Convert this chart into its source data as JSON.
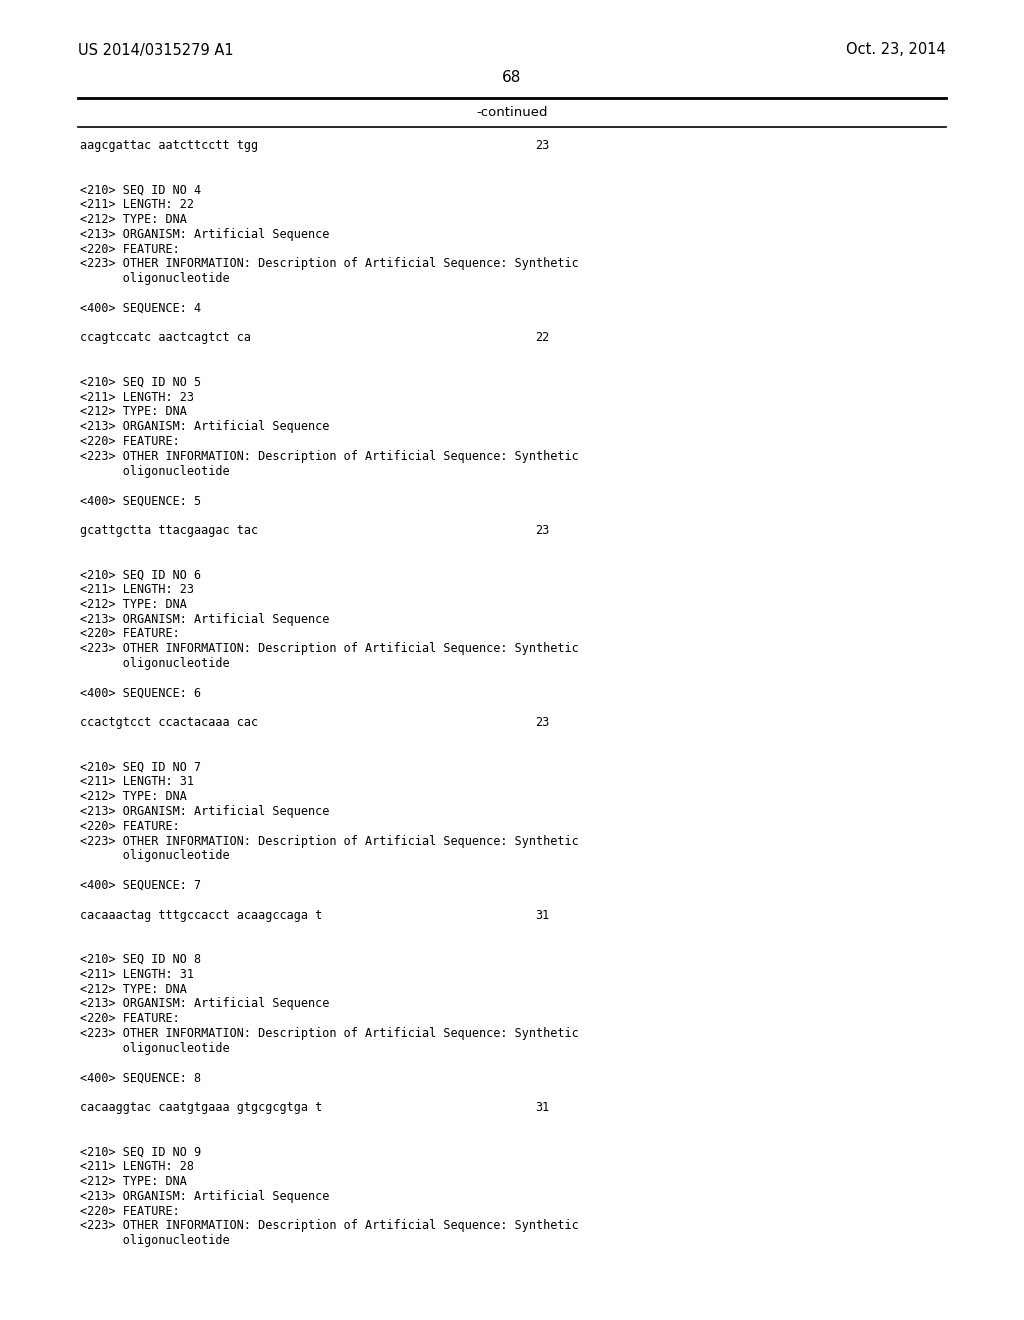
{
  "background_color": "#ffffff",
  "header_left": "US 2014/0315279 A1",
  "header_right": "Oct. 23, 2014",
  "page_number": "68",
  "continued_label": "-continued",
  "rows": [
    {
      "left": "aagcgattac aatcttcctt tgg",
      "right": "23"
    },
    {
      "left": "",
      "right": ""
    },
    {
      "left": "",
      "right": ""
    },
    {
      "left": "<210> SEQ ID NO 4",
      "right": ""
    },
    {
      "left": "<211> LENGTH: 22",
      "right": ""
    },
    {
      "left": "<212> TYPE: DNA",
      "right": ""
    },
    {
      "left": "<213> ORGANISM: Artificial Sequence",
      "right": ""
    },
    {
      "left": "<220> FEATURE:",
      "right": ""
    },
    {
      "left": "<223> OTHER INFORMATION: Description of Artificial Sequence: Synthetic",
      "right": ""
    },
    {
      "left": "      oligonucleotide",
      "right": ""
    },
    {
      "left": "",
      "right": ""
    },
    {
      "left": "<400> SEQUENCE: 4",
      "right": ""
    },
    {
      "left": "",
      "right": ""
    },
    {
      "left": "ccagtccatc aactcagtct ca",
      "right": "22"
    },
    {
      "left": "",
      "right": ""
    },
    {
      "left": "",
      "right": ""
    },
    {
      "left": "<210> SEQ ID NO 5",
      "right": ""
    },
    {
      "left": "<211> LENGTH: 23",
      "right": ""
    },
    {
      "left": "<212> TYPE: DNA",
      "right": ""
    },
    {
      "left": "<213> ORGANISM: Artificial Sequence",
      "right": ""
    },
    {
      "left": "<220> FEATURE:",
      "right": ""
    },
    {
      "left": "<223> OTHER INFORMATION: Description of Artificial Sequence: Synthetic",
      "right": ""
    },
    {
      "left": "      oligonucleotide",
      "right": ""
    },
    {
      "left": "",
      "right": ""
    },
    {
      "left": "<400> SEQUENCE: 5",
      "right": ""
    },
    {
      "left": "",
      "right": ""
    },
    {
      "left": "gcattgctta ttacgaagac tac",
      "right": "23"
    },
    {
      "left": "",
      "right": ""
    },
    {
      "left": "",
      "right": ""
    },
    {
      "left": "<210> SEQ ID NO 6",
      "right": ""
    },
    {
      "left": "<211> LENGTH: 23",
      "right": ""
    },
    {
      "left": "<212> TYPE: DNA",
      "right": ""
    },
    {
      "left": "<213> ORGANISM: Artificial Sequence",
      "right": ""
    },
    {
      "left": "<220> FEATURE:",
      "right": ""
    },
    {
      "left": "<223> OTHER INFORMATION: Description of Artificial Sequence: Synthetic",
      "right": ""
    },
    {
      "left": "      oligonucleotide",
      "right": ""
    },
    {
      "left": "",
      "right": ""
    },
    {
      "left": "<400> SEQUENCE: 6",
      "right": ""
    },
    {
      "left": "",
      "right": ""
    },
    {
      "left": "ccactgtcct ccactacaaa cac",
      "right": "23"
    },
    {
      "left": "",
      "right": ""
    },
    {
      "left": "",
      "right": ""
    },
    {
      "left": "<210> SEQ ID NO 7",
      "right": ""
    },
    {
      "left": "<211> LENGTH: 31",
      "right": ""
    },
    {
      "left": "<212> TYPE: DNA",
      "right": ""
    },
    {
      "left": "<213> ORGANISM: Artificial Sequence",
      "right": ""
    },
    {
      "left": "<220> FEATURE:",
      "right": ""
    },
    {
      "left": "<223> OTHER INFORMATION: Description of Artificial Sequence: Synthetic",
      "right": ""
    },
    {
      "left": "      oligonucleotide",
      "right": ""
    },
    {
      "left": "",
      "right": ""
    },
    {
      "left": "<400> SEQUENCE: 7",
      "right": ""
    },
    {
      "left": "",
      "right": ""
    },
    {
      "left": "cacaaactag tttgccacct acaagccaga t",
      "right": "31"
    },
    {
      "left": "",
      "right": ""
    },
    {
      "left": "",
      "right": ""
    },
    {
      "left": "<210> SEQ ID NO 8",
      "right": ""
    },
    {
      "left": "<211> LENGTH: 31",
      "right": ""
    },
    {
      "left": "<212> TYPE: DNA",
      "right": ""
    },
    {
      "left": "<213> ORGANISM: Artificial Sequence",
      "right": ""
    },
    {
      "left": "<220> FEATURE:",
      "right": ""
    },
    {
      "left": "<223> OTHER INFORMATION: Description of Artificial Sequence: Synthetic",
      "right": ""
    },
    {
      "left": "      oligonucleotide",
      "right": ""
    },
    {
      "left": "",
      "right": ""
    },
    {
      "left": "<400> SEQUENCE: 8",
      "right": ""
    },
    {
      "left": "",
      "right": ""
    },
    {
      "left": "cacaaggtac caatgtgaaa gtgcgcgtga t",
      "right": "31"
    },
    {
      "left": "",
      "right": ""
    },
    {
      "left": "",
      "right": ""
    },
    {
      "left": "<210> SEQ ID NO 9",
      "right": ""
    },
    {
      "left": "<211> LENGTH: 28",
      "right": ""
    },
    {
      "left": "<212> TYPE: DNA",
      "right": ""
    },
    {
      "left": "<213> ORGANISM: Artificial Sequence",
      "right": ""
    },
    {
      "left": "<220> FEATURE:",
      "right": ""
    },
    {
      "left": "<223> OTHER INFORMATION: Description of Artificial Sequence: Synthetic",
      "right": ""
    },
    {
      "left": "      oligonucleotide",
      "right": ""
    }
  ]
}
